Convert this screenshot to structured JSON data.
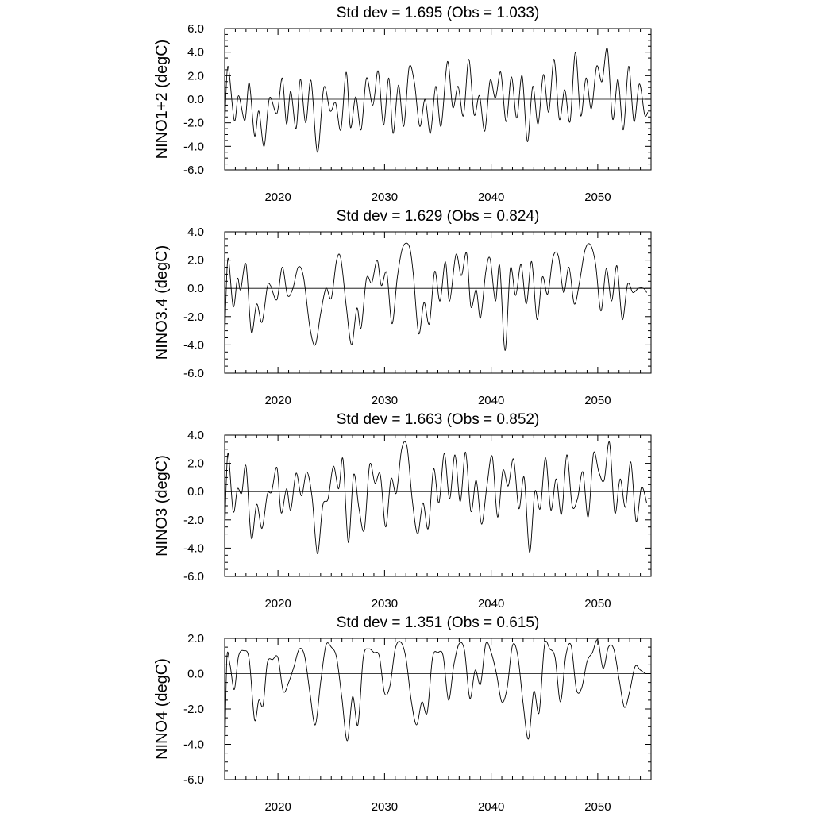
{
  "chart_data": [
    {
      "type": "line",
      "title": "Std dev = 1.695 (Obs = 1.033)",
      "ylabel": "NINO1+2 (degC)",
      "xlim": [
        2015,
        2055
      ],
      "ylim": [
        -6,
        6
      ],
      "xticks": [
        2020,
        2030,
        2040,
        2050
      ],
      "xtick_labels": [
        "2020",
        "2030",
        "2040",
        "2050"
      ],
      "yticks": [
        -6,
        -4,
        -2,
        0,
        2,
        4,
        6
      ],
      "ytick_labels": [
        "-6.0",
        "-4.0",
        "-2.0",
        "0.0",
        "2.0",
        "4.0",
        "6.0"
      ],
      "series": [
        {
          "x": [
            2015.0,
            2015.3,
            2015.9,
            2016.3,
            2016.9,
            2017.3,
            2017.8,
            2018.2,
            2018.7,
            2019.2,
            2019.9,
            2020.4,
            2020.8,
            2021.2,
            2021.7,
            2022.1,
            2022.6,
            2023.1,
            2023.7,
            2024.3,
            2024.9,
            2025.4,
            2025.9,
            2026.4,
            2026.8,
            2027.3,
            2027.8,
            2028.3,
            2028.9,
            2029.4,
            2029.9,
            2030.4,
            2030.8,
            2031.3,
            2031.8,
            2032.3,
            2032.8,
            2033.3,
            2033.8,
            2034.3,
            2034.8,
            2035.3,
            2035.9,
            2036.4,
            2036.9,
            2037.4,
            2037.9,
            2038.4,
            2038.9,
            2039.4,
            2039.9,
            2040.4,
            2040.9,
            2041.4,
            2041.9,
            2042.4,
            2042.9,
            2043.4,
            2043.9,
            2044.4,
            2044.9,
            2045.4,
            2045.9,
            2046.4,
            2046.9,
            2047.4,
            2047.9,
            2048.4,
            2048.9,
            2049.4,
            2049.9,
            2050.4,
            2050.9,
            2051.4,
            2051.9,
            2052.4,
            2052.9,
            2053.4,
            2053.9,
            2054.4,
            2054.7
          ],
          "y": [
            -2.6,
            2.8,
            -1.8,
            0.3,
            -1.8,
            1.4,
            -3.1,
            -1.0,
            -4.0,
            0.1,
            -1.2,
            1.8,
            -2.1,
            0.7,
            -2.5,
            1.7,
            -2.0,
            1.6,
            -4.5,
            1.0,
            -1.0,
            -0.3,
            -2.6,
            2.3,
            -2.4,
            0.2,
            -2.6,
            1.8,
            -0.5,
            2.4,
            -2.2,
            1.8,
            -2.9,
            1.2,
            -2.3,
            2.7,
            1.4,
            -2.3,
            0.0,
            -2.9,
            1.1,
            -2.3,
            3.2,
            -0.7,
            1.1,
            -1.4,
            3.4,
            -1.3,
            0.3,
            -2.7,
            1.6,
            0.1,
            2.3,
            -1.9,
            1.9,
            -1.6,
            2.0,
            -3.6,
            1.1,
            -2.1,
            2.1,
            -1.1,
            3.4,
            -1.7,
            0.8,
            -1.9,
            4.0,
            -1.4,
            1.8,
            -0.8,
            2.8,
            1.5,
            4.3,
            -1.7,
            1.7,
            -2.6,
            2.8,
            -1.9,
            1.3,
            -1.3,
            -1.1
          ]
        }
      ]
    },
    {
      "type": "line",
      "title": "Std dev = 1.629 (Obs = 0.824)",
      "ylabel": "NINO3.4 (degC)",
      "xlim": [
        2015,
        2055
      ],
      "ylim": [
        -6,
        4
      ],
      "xticks": [
        2020,
        2030,
        2040,
        2050
      ],
      "xtick_labels": [
        "2020",
        "2030",
        "2040",
        "2050"
      ],
      "yticks": [
        -6,
        -4,
        -2,
        0,
        2,
        4
      ],
      "ytick_labels": [
        "-6.0",
        "-4.0",
        "-2.0",
        "0.0",
        "2.0",
        "4.0"
      ],
      "series": [
        {
          "x": [
            2015.0,
            2015.3,
            2015.8,
            2016.2,
            2016.5,
            2017.0,
            2017.5,
            2018.0,
            2018.5,
            2019.0,
            2019.3,
            2019.9,
            2020.4,
            2020.9,
            2021.4,
            2021.9,
            2022.4,
            2023.0,
            2023.5,
            2024.0,
            2024.5,
            2025.0,
            2025.5,
            2025.9,
            2026.4,
            2026.9,
            2027.4,
            2027.8,
            2028.3,
            2028.8,
            2029.3,
            2029.7,
            2030.2,
            2030.7,
            2031.2,
            2031.7,
            2032.3,
            2032.7,
            2033.2,
            2033.7,
            2034.2,
            2034.7,
            2035.2,
            2035.7,
            2036.1,
            2036.7,
            2037.2,
            2037.7,
            2038.1,
            2038.6,
            2039.0,
            2039.5,
            2039.9,
            2040.4,
            2040.8,
            2041.3,
            2041.8,
            2042.3,
            2042.8,
            2043.3,
            2043.8,
            2044.3,
            2044.8,
            2045.3,
            2045.8,
            2046.3,
            2046.8,
            2047.3,
            2047.8,
            2048.3,
            2048.8,
            2049.3,
            2049.8,
            2050.3,
            2050.8,
            2051.3,
            2051.8,
            2052.3,
            2052.8,
            2053.3,
            2053.8,
            2054.3,
            2054.6
          ],
          "y": [
            -3.9,
            2.1,
            -1.3,
            0.7,
            -0.1,
            1.7,
            -3.1,
            -1.1,
            -2.4,
            0.1,
            0.2,
            -0.8,
            1.5,
            -0.5,
            0.0,
            1.5,
            0.8,
            -2.8,
            -4.0,
            -1.8,
            0.0,
            -0.7,
            2.0,
            2.1,
            -1.2,
            -4.0,
            -1.4,
            -2.8,
            0.7,
            0.4,
            2.0,
            0.2,
            1.1,
            -2.5,
            0.8,
            2.9,
            3.0,
            1.0,
            -3.2,
            -1.0,
            -2.5,
            1.2,
            -0.9,
            1.9,
            -0.9,
            2.4,
            0.9,
            2.5,
            -1.3,
            -0.1,
            -2.1,
            1.2,
            2.1,
            -0.9,
            1.6,
            -4.4,
            1.4,
            -0.5,
            1.7,
            -1.1,
            1.9,
            -2.2,
            0.8,
            -0.4,
            2.2,
            2.3,
            -0.3,
            1.5,
            -1.1,
            0.5,
            2.7,
            3.1,
            1.7,
            -1.6,
            1.4,
            -0.9,
            1.6,
            -2.2,
            0.3,
            -0.3,
            0.0,
            0.0,
            -0.3
          ]
        }
      ]
    },
    {
      "type": "line",
      "title": "Std dev = 1.663 (Obs = 0.852)",
      "ylabel": "NINO3 (degC)",
      "xlim": [
        2015,
        2055
      ],
      "ylim": [
        -6,
        4
      ],
      "xticks": [
        2020,
        2030,
        2040,
        2050
      ],
      "xtick_labels": [
        "2020",
        "2030",
        "2040",
        "2050"
      ],
      "yticks": [
        -6,
        -4,
        -2,
        0,
        2,
        4
      ],
      "ytick_labels": [
        "-6.0",
        "-4.0",
        "-2.0",
        "0.0",
        "2.0",
        "4.0"
      ],
      "series": [
        {
          "x": [
            2015.0,
            2015.3,
            2015.8,
            2016.2,
            2016.6,
            2017.0,
            2017.5,
            2018.0,
            2018.5,
            2019.0,
            2019.4,
            2019.9,
            2020.3,
            2020.8,
            2021.2,
            2021.7,
            2022.2,
            2022.7,
            2023.2,
            2023.7,
            2024.2,
            2024.7,
            2025.2,
            2025.7,
            2026.1,
            2026.6,
            2027.1,
            2027.6,
            2028.1,
            2028.6,
            2029.1,
            2029.6,
            2030.1,
            2030.6,
            2031.1,
            2031.6,
            2032.1,
            2032.6,
            2033.1,
            2033.6,
            2034.1,
            2034.6,
            2035.1,
            2035.6,
            2036.1,
            2036.6,
            2037.1,
            2037.6,
            2038.1,
            2038.6,
            2039.1,
            2039.6,
            2040.1,
            2040.6,
            2041.1,
            2041.6,
            2042.1,
            2042.6,
            2043.1,
            2043.6,
            2044.1,
            2044.6,
            2045.1,
            2045.6,
            2046.1,
            2046.6,
            2047.1,
            2047.6,
            2048.1,
            2048.6,
            2049.1,
            2049.6,
            2050.1,
            2050.6,
            2051.1,
            2051.6,
            2052.1,
            2052.6,
            2053.1,
            2053.6,
            2054.1,
            2054.6
          ],
          "y": [
            -3.1,
            2.7,
            -1.4,
            0.2,
            -0.1,
            1.8,
            -3.3,
            -0.9,
            -2.6,
            -0.2,
            0.0,
            1.7,
            -1.5,
            0.2,
            -1.3,
            1.3,
            -0.3,
            1.4,
            -0.4,
            -4.4,
            -1.0,
            -0.5,
            1.8,
            0.2,
            2.3,
            -3.6,
            1.2,
            -1.2,
            -2.7,
            1.9,
            0.6,
            1.2,
            -2.5,
            0.9,
            -0.1,
            3.0,
            3.2,
            -0.6,
            -3.0,
            -0.8,
            -2.6,
            1.6,
            -0.8,
            2.7,
            -0.5,
            2.6,
            -0.7,
            2.8,
            -1.4,
            0.8,
            -2.3,
            0.4,
            2.5,
            -1.8,
            1.5,
            0.4,
            2.3,
            -1.2,
            1.0,
            -4.3,
            0.0,
            -1.2,
            2.4,
            -1.3,
            0.9,
            -1.6,
            2.6,
            -1.0,
            -0.5,
            1.4,
            -1.8,
            2.7,
            1.4,
            0.8,
            3.5,
            -1.5,
            0.9,
            -1.1,
            2.1,
            -2.1,
            0.3,
            -0.8
          ]
        }
      ]
    },
    {
      "type": "line",
      "title": "Std dev = 1.351 (Obs = 0.615)",
      "ylabel": "NINO4 (degC)",
      "xlim": [
        2015,
        2055
      ],
      "ylim": [
        -6,
        2
      ],
      "xticks": [
        2020,
        2030,
        2040,
        2050
      ],
      "xtick_labels": [
        "2020",
        "2030",
        "2040",
        "2050"
      ],
      "yticks": [
        -6,
        -4,
        -2,
        0,
        2
      ],
      "ytick_labels": [
        "-6.0",
        "-4.0",
        "-2.0",
        "0.0",
        "2.0"
      ],
      "series": [
        {
          "x": [
            2015.0,
            2015.2,
            2015.5,
            2015.9,
            2016.3,
            2016.8,
            2017.3,
            2017.8,
            2018.2,
            2018.6,
            2019.0,
            2019.5,
            2020.0,
            2020.5,
            2021.0,
            2021.5,
            2022.0,
            2022.5,
            2023.0,
            2023.5,
            2024.0,
            2024.5,
            2025.0,
            2025.5,
            2026.0,
            2026.5,
            2027.0,
            2027.5,
            2028.0,
            2028.5,
            2029.0,
            2029.5,
            2030.0,
            2030.5,
            2031.0,
            2031.5,
            2032.0,
            2032.5,
            2033.0,
            2033.5,
            2034.0,
            2034.5,
            2035.0,
            2035.5,
            2036.0,
            2036.5,
            2037.0,
            2037.5,
            2038.0,
            2038.5,
            2039.0,
            2039.5,
            2040.0,
            2040.5,
            2041.0,
            2041.5,
            2042.0,
            2042.5,
            2043.0,
            2043.5,
            2044.0,
            2044.5,
            2045.0,
            2045.5,
            2046.0,
            2046.5,
            2047.0,
            2047.5,
            2048.0,
            2048.5,
            2049.0,
            2049.5,
            2050.0,
            2050.5,
            2051.0,
            2051.5,
            2052.0,
            2052.5,
            2053.0,
            2053.5,
            2054.0,
            2054.5
          ],
          "y": [
            -5.5,
            0.8,
            0.5,
            -0.9,
            1.0,
            1.3,
            0.8,
            -2.6,
            -1.5,
            -1.8,
            0.6,
            0.8,
            0.9,
            -1.0,
            -0.5,
            0.4,
            1.4,
            1.0,
            -1.1,
            -2.9,
            -0.5,
            1.6,
            1.5,
            0.9,
            -1.4,
            -3.8,
            -1.3,
            -2.9,
            0.9,
            1.4,
            1.2,
            1.0,
            -1.1,
            -0.7,
            1.4,
            1.8,
            0.9,
            -1.5,
            -2.9,
            -1.6,
            -2.2,
            0.9,
            1.2,
            1.0,
            -1.5,
            0.5,
            1.7,
            1.3,
            -1.4,
            0.2,
            -0.6,
            1.7,
            1.2,
            0.0,
            -1.6,
            -0.8,
            1.6,
            1.0,
            -1.7,
            -3.7,
            -1.0,
            -2.2,
            1.6,
            1.4,
            0.9,
            -1.6,
            1.0,
            1.6,
            -0.9,
            -0.8,
            0.7,
            1.2,
            1.9,
            0.3,
            1.5,
            1.4,
            -0.3,
            -1.9,
            -1.0,
            0.4,
            0.2,
            0.0
          ]
        }
      ]
    }
  ]
}
